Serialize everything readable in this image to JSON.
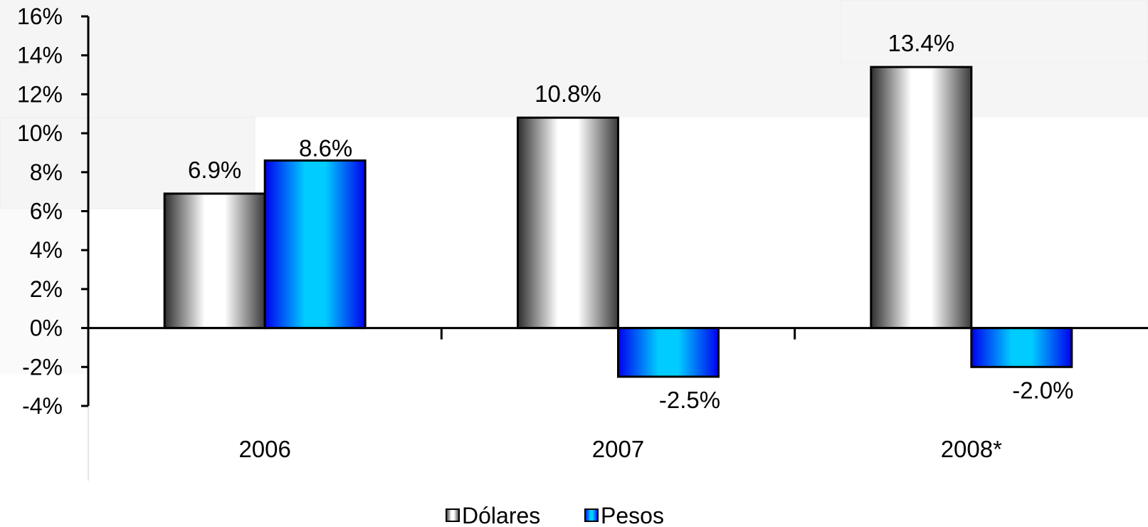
{
  "chart_data": {
    "type": "bar",
    "categories": [
      "2006",
      "2007",
      "2008*"
    ],
    "series": [
      {
        "name": "Dólares",
        "values": [
          6.9,
          10.8,
          13.4
        ],
        "labels": [
          "6.9%",
          "10.8%",
          "13.4%"
        ],
        "style": "gray-metallic"
      },
      {
        "name": "Pesos",
        "values": [
          8.6,
          -2.5,
          -2.0
        ],
        "labels": [
          "8.6%",
          "-2.5%",
          "-2.0%"
        ],
        "style": "blue-gradient"
      }
    ],
    "yticks": [
      16,
      14,
      12,
      10,
      8,
      6,
      4,
      2,
      0,
      -2,
      -4
    ],
    "ytick_labels": [
      "16%",
      "14%",
      "12%",
      "10%",
      "8%",
      "6%",
      "4%",
      "2%",
      "0%",
      "-2%",
      "-4%"
    ],
    "ylim": [
      -4,
      16
    ],
    "title": "",
    "xlabel": "",
    "ylabel": "",
    "grid": false,
    "legend_position": "bottom-center",
    "colors": {
      "pesos_light": "#00ccff",
      "pesos_dark": "#0000ee",
      "dolares_light": "#ffffff",
      "dolares_dark": "#333333"
    }
  }
}
